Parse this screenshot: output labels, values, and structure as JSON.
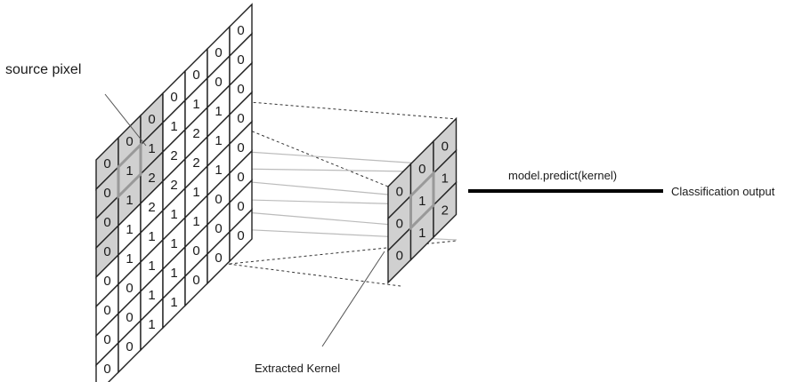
{
  "labels": {
    "source_pixel": "source pixel",
    "extracted_kernel": "Extracted Kernel",
    "predict_call": "model.predict(kernel)",
    "classification_output": "Classification output"
  },
  "colors": {
    "shaded_cell": "#d0d0d0",
    "cell_fill": "#ffffff",
    "highlight": "#999999",
    "line": "#222222"
  },
  "source_grid": {
    "rows": 8,
    "cols": 7,
    "values": [
      [
        "0",
        "0",
        "0",
        "0",
        "0",
        "0",
        "0"
      ],
      [
        "0",
        "1",
        "1",
        "1",
        "1",
        "0",
        "0"
      ],
      [
        "0",
        "1",
        "2",
        "2",
        "2",
        "1",
        "0"
      ],
      [
        "0",
        "1",
        "2",
        "2",
        "2",
        "1",
        "0"
      ],
      [
        "0",
        "1",
        "1",
        "1",
        "1",
        "1",
        "0"
      ],
      [
        "0",
        "0",
        "1",
        "1",
        "1",
        "0",
        "0"
      ],
      [
        "0",
        "0",
        "1",
        "1",
        "0",
        "0",
        "0"
      ],
      [
        "0",
        "0",
        "1",
        "1",
        "0",
        "0",
        "0"
      ]
    ],
    "shaded": [
      [
        0,
        0
      ],
      [
        0,
        1
      ],
      [
        0,
        2
      ],
      [
        1,
        0
      ],
      [
        1,
        1
      ],
      [
        1,
        2
      ],
      [
        2,
        0
      ],
      [
        2,
        1
      ],
      [
        2,
        2
      ],
      [
        3,
        0
      ]
    ]
  },
  "kernel_grid": {
    "rows": 3,
    "cols": 3,
    "values": [
      [
        "0",
        "0",
        "0"
      ],
      [
        "0",
        "1",
        "1"
      ],
      [
        "0",
        "1",
        "2"
      ]
    ]
  }
}
